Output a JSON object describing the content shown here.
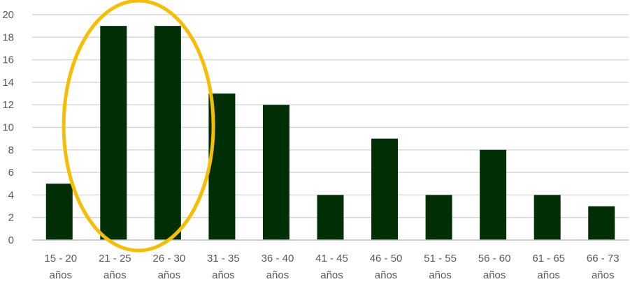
{
  "chart_data": {
    "type": "bar",
    "categories": [
      [
        "15 - 20",
        "años"
      ],
      [
        "21 - 25",
        "años"
      ],
      [
        "26 - 30",
        "años"
      ],
      [
        "31 - 35",
        "años"
      ],
      [
        "36 - 40",
        "años"
      ],
      [
        "41 - 45",
        "años"
      ],
      [
        "46 - 50",
        "años"
      ],
      [
        "51 - 55",
        "años"
      ],
      [
        "56 - 60",
        "años"
      ],
      [
        "61 - 65",
        "años"
      ],
      [
        "66 - 73",
        "años"
      ]
    ],
    "values": [
      5,
      19,
      19,
      13,
      12,
      4,
      9,
      4,
      8,
      4,
      3
    ],
    "ylim": [
      0,
      20
    ],
    "yticks": [
      0,
      2,
      4,
      6,
      8,
      10,
      12,
      14,
      16,
      18,
      20
    ],
    "grid": true,
    "legend": "none",
    "colors": {
      "bar": "#002f06",
      "grid": "#d6d6d6",
      "axis": "#bfbfbf",
      "highlight": "#f7bd00"
    },
    "annotation": {
      "type": "ellipse-highlight",
      "categories": [
        "21 - 25",
        "26 - 30"
      ]
    }
  }
}
